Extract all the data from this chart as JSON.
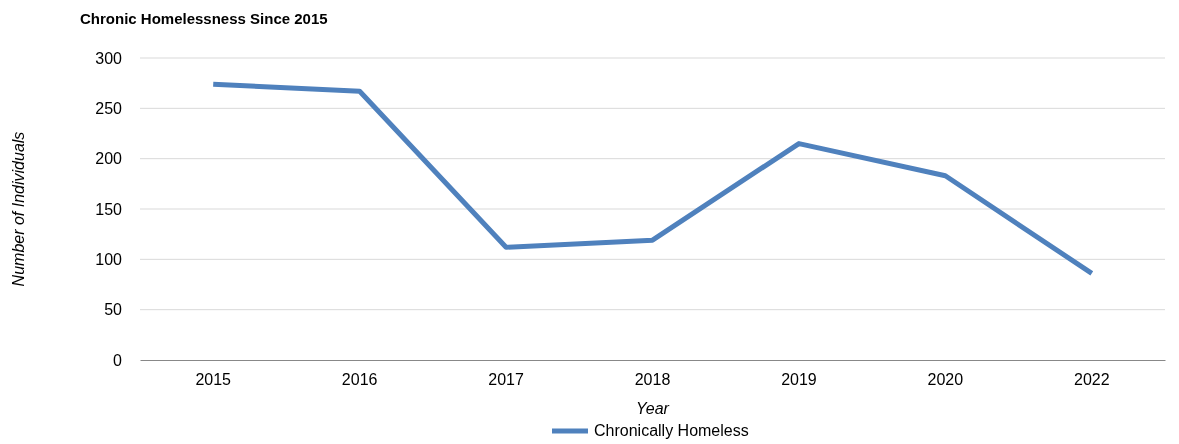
{
  "chart_data": {
    "type": "line",
    "title": "Chronic Homelessness Since 2015",
    "xlabel": "Year",
    "ylabel": "Number of Individuals",
    "categories": [
      "2015",
      "2016",
      "2017",
      "2018",
      "2019",
      "2020",
      "2022"
    ],
    "series": [
      {
        "name": "Chronically Homeless",
        "color": "#4f81bd",
        "values": [
          274,
          267,
          112,
          119,
          215,
          183,
          86
        ]
      }
    ],
    "ylim": [
      0,
      300
    ],
    "yticks": [
      0,
      50,
      100,
      150,
      200,
      250,
      300
    ],
    "grid": "y",
    "legend": "bottom",
    "marker": "none",
    "line_style": "solid"
  }
}
